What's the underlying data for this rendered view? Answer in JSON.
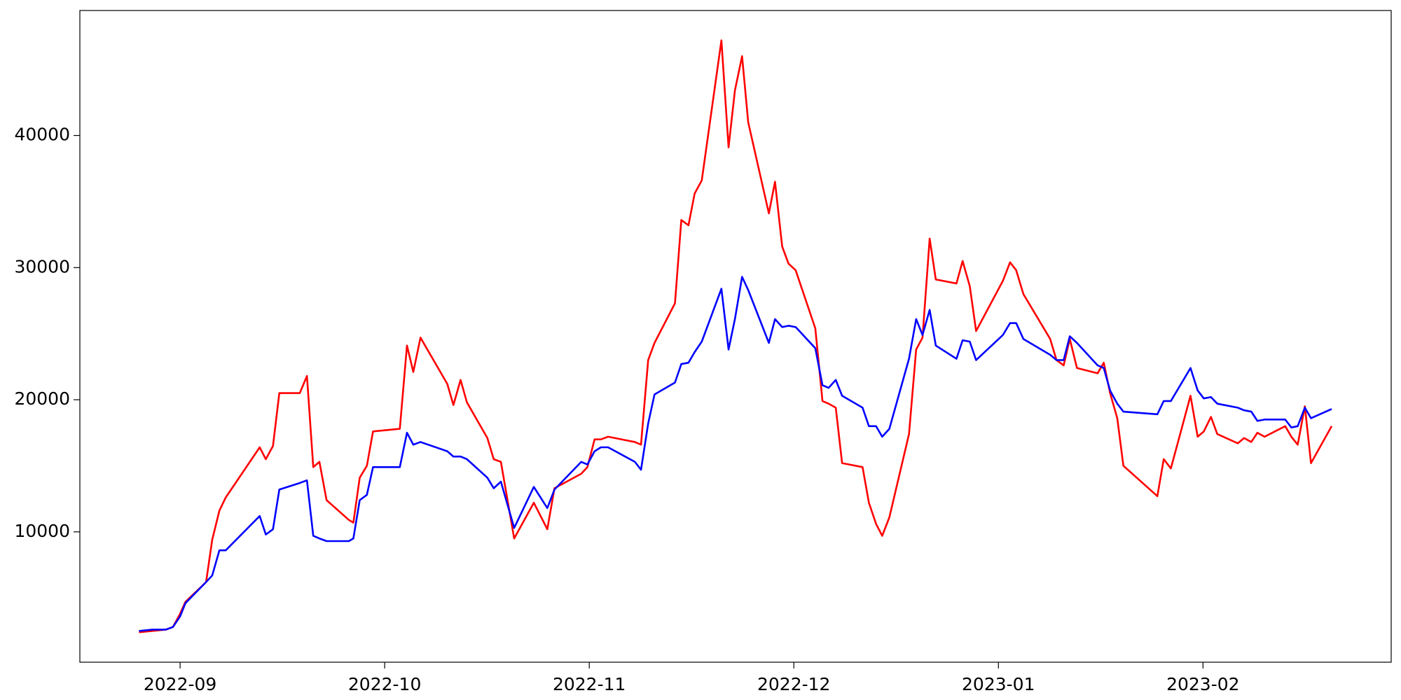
{
  "chart_data": {
    "type": "line",
    "x": [
      8.799,
      8.865,
      8.93,
      8.965,
      9.0,
      9.026,
      9.127,
      9.157,
      9.192,
      9.223,
      9.389,
      9.419,
      9.454,
      9.485,
      9.585,
      9.62,
      9.651,
      9.681,
      9.716,
      9.825,
      9.847,
      9.878,
      9.913,
      9.943,
      10.074,
      10.109,
      10.14,
      10.175,
      10.306,
      10.336,
      10.371,
      10.402,
      10.502,
      10.533,
      10.568,
      10.633,
      10.729,
      10.795,
      10.83,
      10.961,
      10.991,
      11.026,
      11.057,
      11.092,
      11.223,
      11.253,
      11.288,
      11.319,
      11.419,
      11.45,
      11.485,
      11.515,
      11.55,
      11.646,
      11.681,
      11.712,
      11.747,
      11.777,
      11.878,
      11.908,
      11.943,
      11.974,
      12.009,
      12.105,
      12.14,
      12.17,
      12.205,
      12.236,
      12.336,
      12.367,
      12.402,
      12.432,
      12.467,
      12.563,
      12.598,
      12.629,
      12.664,
      12.694,
      12.795,
      12.825,
      12.86,
      12.891,
      13.022,
      13.057,
      13.087,
      13.122,
      13.253,
      13.284,
      13.319,
      13.349,
      13.384,
      13.485,
      13.515,
      13.546,
      13.581,
      13.611,
      13.777,
      13.808,
      13.843,
      13.939,
      13.974,
      14.004,
      14.039,
      14.07,
      14.17,
      14.201,
      14.236,
      14.266,
      14.301,
      14.402,
      14.432,
      14.463,
      14.498,
      14.528,
      14.629
    ],
    "series": [
      {
        "color": "#ff0000",
        "values": [
          2400,
          2500,
          2600,
          2800,
          3800,
          4700,
          6200,
          9400,
          11600,
          12600,
          16400,
          15500,
          16500,
          20500,
          20500,
          21800,
          14900,
          15300,
          12400,
          10900,
          10700,
          14100,
          15000,
          17600,
          17800,
          24100,
          22100,
          24700,
          21200,
          19600,
          21500,
          19800,
          17100,
          15500,
          15300,
          9500,
          12200,
          10200,
          13300,
          14400,
          14900,
          17000,
          17000,
          17200,
          16800,
          16600,
          23000,
          24300,
          27300,
          33600,
          33200,
          35600,
          36600,
          47200,
          39100,
          43400,
          46000,
          41000,
          34100,
          36500,
          31600,
          30300,
          29800,
          25400,
          19900,
          19700,
          19400,
          15200,
          14900,
          12200,
          10600,
          9700,
          11100,
          17400,
          23800,
          24700,
          32200,
          29100,
          28800,
          30500,
          28600,
          25200,
          29000,
          30400,
          29800,
          28000,
          24600,
          23000,
          22600,
          24600,
          22400,
          22000,
          22800,
          20500,
          18600,
          15000,
          12700,
          15500,
          14800,
          20300,
          17200,
          17600,
          18700,
          17400,
          16700,
          17100,
          16800,
          17500,
          17200,
          18000,
          17200,
          16600,
          19500,
          15200,
          18000
        ]
      },
      {
        "color": "#0000ff",
        "values": [
          2500,
          2600,
          2600,
          2800,
          3600,
          4600,
          6200,
          6700,
          8600,
          8600,
          11200,
          9800,
          10200,
          13200,
          13700,
          13900,
          9700,
          9500,
          9300,
          9300,
          9500,
          12400,
          12800,
          14900,
          14900,
          17500,
          16600,
          16800,
          16100,
          15700,
          15700,
          15500,
          14100,
          13300,
          13800,
          10300,
          13400,
          11800,
          13200,
          15300,
          15100,
          16100,
          16400,
          16400,
          15300,
          14700,
          18200,
          20400,
          21300,
          22700,
          22800,
          23600,
          24400,
          28400,
          23800,
          26100,
          29300,
          28300,
          24300,
          26100,
          25500,
          25600,
          25500,
          23900,
          21100,
          20900,
          21500,
          20300,
          19400,
          18000,
          18000,
          17200,
          17800,
          23100,
          26100,
          24900,
          26800,
          24100,
          23100,
          24500,
          24400,
          23000,
          24900,
          25800,
          25800,
          24600,
          23400,
          23000,
          23000,
          24800,
          24300,
          22600,
          22400,
          20700,
          19700,
          19100,
          18900,
          19900,
          19900,
          22400,
          20700,
          20100,
          20200,
          19700,
          19400,
          19200,
          19100,
          18400,
          18500,
          18500,
          17900,
          18000,
          19400,
          18600,
          19300
        ]
      }
    ],
    "xlim": [
      8.51,
      14.92
    ],
    "xticks": [
      {
        "value": 9,
        "label": "2022-09"
      },
      {
        "value": 10,
        "label": "2022-10"
      },
      {
        "value": 11,
        "label": "2022-11"
      },
      {
        "value": 12,
        "label": "2022-12"
      },
      {
        "value": 13,
        "label": "2023-01"
      },
      {
        "value": 14,
        "label": "2023-02"
      }
    ],
    "ylim": [
      135,
      49459
    ],
    "yticks": [
      10000,
      20000,
      30000,
      40000
    ]
  }
}
